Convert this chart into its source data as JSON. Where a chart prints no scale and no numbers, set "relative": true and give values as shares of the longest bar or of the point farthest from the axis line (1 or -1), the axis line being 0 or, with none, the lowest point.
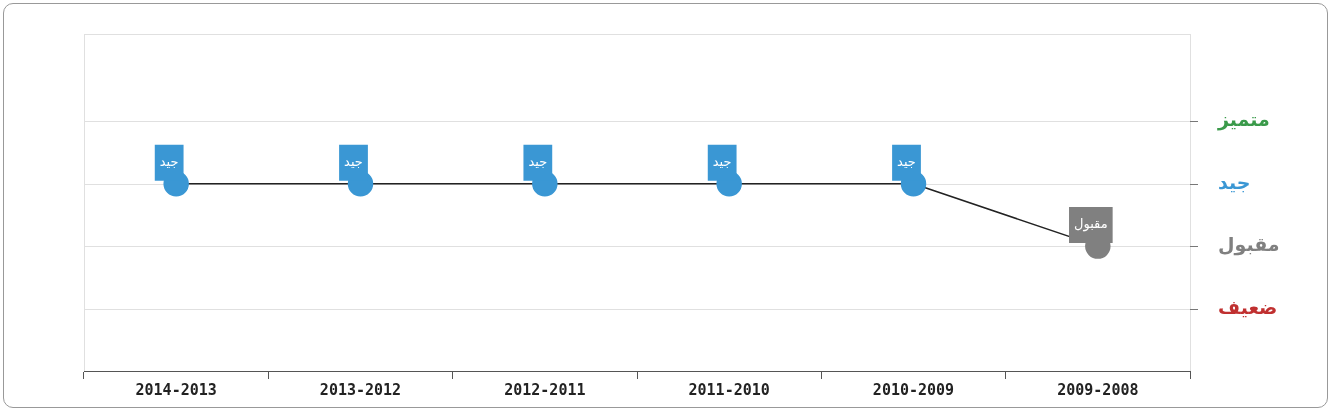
{
  "chart_data": {
    "type": "line",
    "relative": true,
    "categories": [
      "2014-2013",
      "2013-2012",
      "2012-2011",
      "2011-2010",
      "2010-2009",
      "2009-2008"
    ],
    "series": [
      {
        "color": "#222222",
        "colors": [
          "#3a97d4",
          "#3a97d4",
          "#3a97d4",
          "#3a97d4",
          "#3a97d4",
          "#808080"
        ],
        "values": [
          1,
          1,
          1,
          1,
          1,
          0.667
        ]
      }
    ],
    "annotations": [
      {
        "text": "جيد",
        "x": "2014-2013",
        "y": 1
      },
      {
        "text": "جيد",
        "x": "2013-2012",
        "y": 1
      },
      {
        "text": "جيد",
        "x": "2012-2011",
        "y": 1
      },
      {
        "text": "جيد",
        "x": "2011-2010",
        "y": 1
      },
      {
        "text": "جيد",
        "x": "2010-2009",
        "y": 1
      },
      {
        "text": "مقبول",
        "x": "2009-2008",
        "y": 0.667
      }
    ],
    "ref_lines": [
      {
        "axis": "y",
        "value": 1.333,
        "label": "متميز"
      },
      {
        "axis": "y",
        "value": 1,
        "label": "جيد"
      },
      {
        "axis": "y",
        "value": 0.667,
        "label": "مقبول"
      },
      {
        "axis": "y",
        "value": 0.333,
        "label": "ضعيف"
      }
    ],
    "legend": false,
    "marker": "circle",
    "line_style": "solid"
  }
}
